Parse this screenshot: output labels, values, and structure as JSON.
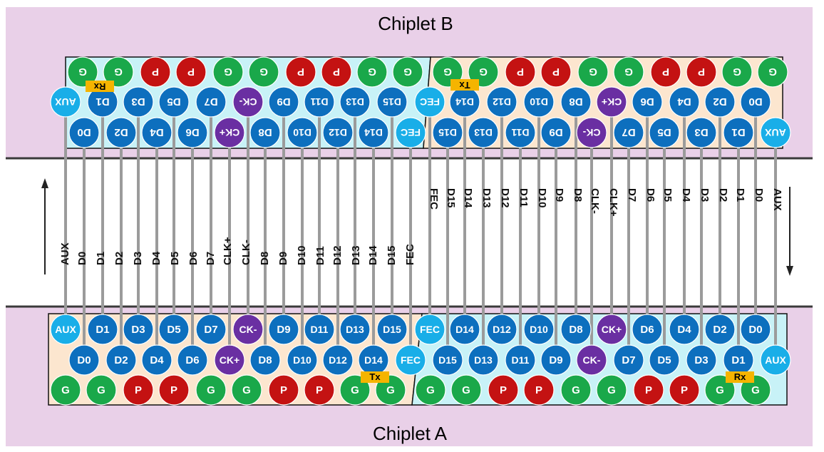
{
  "chiplet_b": {
    "title": "Chiplet B"
  },
  "chiplet_a": {
    "title": "Chiplet A"
  },
  "colors": {
    "background": "#e9d0e8",
    "channel": "#ffffff",
    "region_cyan": "#c8f2f7",
    "region_beige": "#fce6cf",
    "pin_blue": "#0d6fbe",
    "pin_lightblue": "#19aee8",
    "pin_purple": "#6a2fa2",
    "pin_green": "#1aa84a",
    "pin_red": "#c41212",
    "wire": "#9b9b9b",
    "tag": "#f5b400"
  },
  "tags": {
    "tx": "Tx",
    "rx": "Rx"
  },
  "wire_labels": {
    "left": [
      "AUX",
      "D0",
      "D1",
      "D2",
      "D3",
      "D4",
      "D5",
      "D6",
      "D7",
      "CLK+",
      "CLK-",
      "D8",
      "D9",
      "D10",
      "D11",
      "D12",
      "D13",
      "D14",
      "D15",
      "FEC"
    ],
    "right": [
      "FEC",
      "D15",
      "D14",
      "D13",
      "D12",
      "D11",
      "D10",
      "D9",
      "D8",
      "CLK-",
      "CLK+",
      "D7",
      "D6",
      "D5",
      "D4",
      "D3",
      "D2",
      "D1",
      "D0",
      "AUX"
    ]
  },
  "chiplet_a_rows": {
    "upper": [
      "AUX",
      "D1",
      "D3",
      "D5",
      "D7",
      "CK-",
      "D9",
      "D11",
      "D13",
      "D15",
      "FEC",
      "D14",
      "D12",
      "D10",
      "D8",
      "CK+",
      "D6",
      "D4",
      "D2",
      "D0"
    ],
    "lower": [
      "D0",
      "D2",
      "D4",
      "D6",
      "CK+",
      "D8",
      "D10",
      "D12",
      "D14",
      "FEC",
      "D15",
      "D13",
      "D11",
      "D9",
      "CK-",
      "D7",
      "D5",
      "D3",
      "D1",
      "AUX"
    ],
    "power": [
      "G",
      "G",
      "P",
      "P",
      "G",
      "G",
      "P",
      "P",
      "G",
      "G",
      "G",
      "G",
      "P",
      "P",
      "G",
      "G",
      "P",
      "P",
      "G",
      "G"
    ]
  },
  "chiplet_b_rows": {
    "power": [
      "G",
      "G",
      "P",
      "P",
      "G",
      "G",
      "P",
      "P",
      "G",
      "G",
      "G",
      "G",
      "P",
      "P",
      "G",
      "G",
      "P",
      "P",
      "G",
      "G"
    ],
    "upper": [
      "AUX",
      "D1",
      "D3",
      "D5",
      "D7",
      "CK-",
      "D9",
      "D11",
      "D13",
      "D15",
      "FEC",
      "D14",
      "D12",
      "D10",
      "D8",
      "CK+",
      "D6",
      "D4",
      "D2",
      "D0"
    ],
    "lower": [
      "D0",
      "D2",
      "D4",
      "D6",
      "CK+",
      "D8",
      "D10",
      "D12",
      "D14",
      "FEC",
      "D15",
      "D13",
      "D11",
      "D9",
      "CK-",
      "D7",
      "D5",
      "D3",
      "D1",
      "AUX"
    ]
  }
}
